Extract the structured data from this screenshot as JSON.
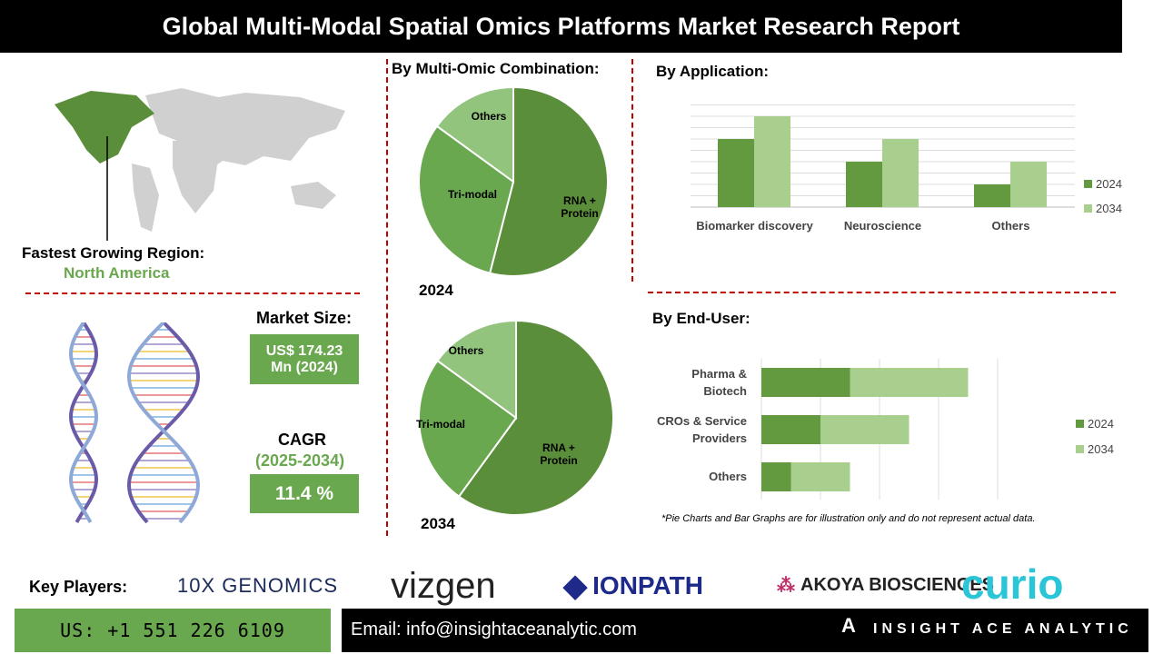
{
  "title": "Global Multi-Modal Spatial Omics Platforms Market Research Report",
  "region": {
    "label": "Fastest Growing Region:",
    "value": "North America"
  },
  "market_size": {
    "label": "Market Size:",
    "value_line1": "US$ 174.23",
    "value_line2": "Mn (2024)"
  },
  "cagr": {
    "label": "CAGR",
    "period": "(2025-2034)",
    "value": "11.4 %"
  },
  "colors": {
    "dark_green": "#5b8e3a",
    "mid_green": "#6aa84f",
    "light_green": "#93c47d",
    "bar_2024": "#649a3f",
    "bar_2034": "#a9cf8e",
    "divider": "#c00000"
  },
  "chart_data": [
    {
      "type": "pie",
      "title": "By Multi-Omic Combination:",
      "year_label": "2024",
      "categories": [
        "RNA + Protein",
        "Tri-modal",
        "Others"
      ],
      "values": [
        54,
        31,
        15
      ]
    },
    {
      "type": "pie",
      "year_label": "2034",
      "categories": [
        "RNA + Protein",
        "Tri-modal",
        "Others"
      ],
      "values": [
        60,
        25,
        15
      ]
    },
    {
      "type": "bar",
      "title": "By Application:",
      "categories": [
        "Biomarker discovery",
        "Neuroscience",
        "Others"
      ],
      "series": [
        {
          "name": "2024",
          "values": [
            6,
            4,
            2
          ]
        },
        {
          "name": "2034",
          "values": [
            8,
            6,
            4
          ]
        }
      ],
      "ylim": [
        0,
        9
      ],
      "grid": true,
      "legend": "right"
    },
    {
      "type": "bar",
      "orientation": "horizontal",
      "stacked": true,
      "title": "By End-User:",
      "categories": [
        "Pharma & Biotech",
        "CROs & Service Providers",
        "Others"
      ],
      "series": [
        {
          "name": "2024",
          "values": [
            1.5,
            1,
            0.5
          ]
        },
        {
          "name": "2034",
          "values": [
            2,
            1.5,
            1
          ]
        }
      ],
      "xlim": [
        0,
        4
      ],
      "grid": true,
      "legend": "right"
    }
  ],
  "disclaimer": "*Pie Charts and Bar Graphs are for illustration only and do not represent actual data.",
  "key_players": {
    "label": "Key Players:",
    "logos": [
      "10X GENOMICS",
      "vizgen",
      "IONPATH",
      "AKOYA BIOSCIENCES",
      "curio"
    ]
  },
  "footer": {
    "phone": "US: +1 551 226 6109",
    "email": "Email: info@insightaceanalytic.com",
    "brand": "INSIGHT ACE ANALYTIC"
  }
}
